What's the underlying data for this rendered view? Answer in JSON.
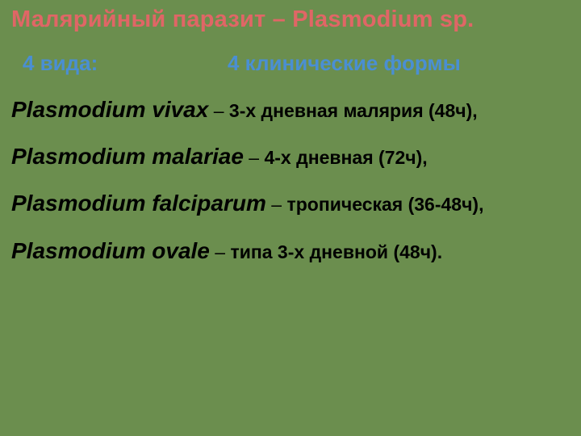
{
  "background_color": "#6b8e4e",
  "title": {
    "text": "Малярийный паразит – Plasmodium sp.",
    "color": "#e06666",
    "fontsize": 29,
    "font_weight": "bold"
  },
  "subheads": {
    "left": {
      "text": "4 вида:",
      "color": "#4a8fd3",
      "fontsize": 26,
      "font_weight": "bold"
    },
    "right": {
      "text": "4 клинические формы",
      "color": "#4a8fd3",
      "fontsize": 26,
      "font_weight": "bold"
    }
  },
  "entries": [
    {
      "name": "Plasmodium vivax",
      "dash": " – ",
      "desc": "3-х дневная малярия (48ч),",
      "name_fontsize": 28,
      "desc_fontsize": 23,
      "name_italic": true,
      "name_bold": true,
      "desc_bold": true,
      "color": "#000000"
    },
    {
      "name": "Plasmodium malariae",
      "dash": " – ",
      "desc": "4-х дневная (72ч),",
      "name_fontsize": 28,
      "desc_fontsize": 23,
      "name_italic": true,
      "name_bold": true,
      "desc_bold": true,
      "color": "#000000"
    },
    {
      "name": "Plasmodium falciparum",
      "dash": " – ",
      "desc": "тропическая (36-48ч),",
      "name_fontsize": 28,
      "desc_fontsize": 23,
      "name_italic": true,
      "name_bold": true,
      "desc_bold": true,
      "color": "#000000"
    },
    {
      "name": "Plasmodium ovale",
      "dash": " – ",
      "desc": "типа 3-х дневной (48ч).",
      "name_fontsize": 28,
      "desc_fontsize": 23,
      "name_italic": true,
      "name_bold": true,
      "desc_bold": true,
      "color": "#000000"
    }
  ]
}
